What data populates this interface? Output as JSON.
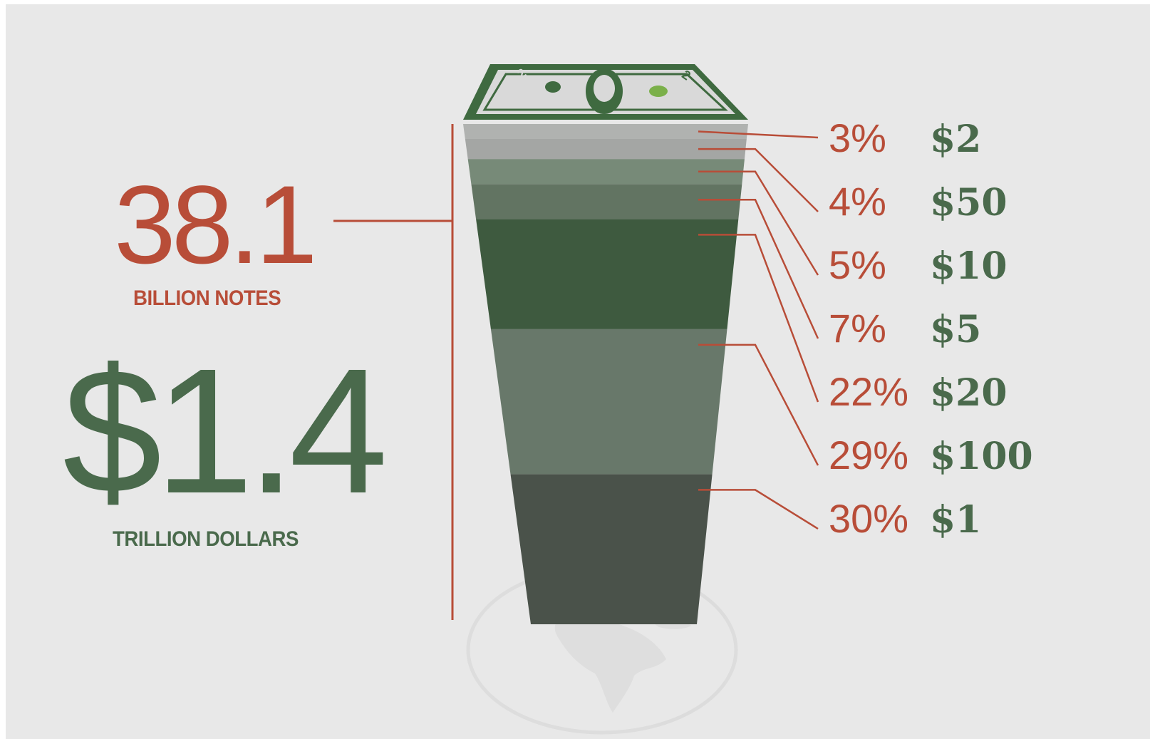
{
  "colors": {
    "accent_red": "#b84d38",
    "accent_green": "#4a6a4c",
    "bill_green": "#3f6a40"
  },
  "stats": {
    "notes": {
      "value": "38.1",
      "caption": "BILLION NOTES"
    },
    "dollars": {
      "value": "$1.4",
      "caption": "TRILLION DOLLARS"
    }
  },
  "chart_data": {
    "type": "stacked-column",
    "unit": "%",
    "segments": [
      {
        "denomination": "$1",
        "percent": 30,
        "percent_label": "30%",
        "color": "#4a524a"
      },
      {
        "denomination": "$100",
        "percent": 29,
        "percent_label": "29%",
        "color": "#68786a"
      },
      {
        "denomination": "$20",
        "percent": 22,
        "percent_label": "22%",
        "color": "#3e5a3f"
      },
      {
        "denomination": "$5",
        "percent": 7,
        "percent_label": "7%",
        "color": "#627462"
      },
      {
        "denomination": "$10",
        "percent": 5,
        "percent_label": "5%",
        "color": "#778a78"
      },
      {
        "denomination": "$50",
        "percent": 4,
        "percent_label": "4%",
        "color": "#a4a6a4"
      },
      {
        "denomination": "$2",
        "percent": 3,
        "percent_label": "3%",
        "color": "#b0b2b0"
      }
    ]
  },
  "bill": {
    "corner_numerals": [
      "2",
      "2"
    ]
  }
}
